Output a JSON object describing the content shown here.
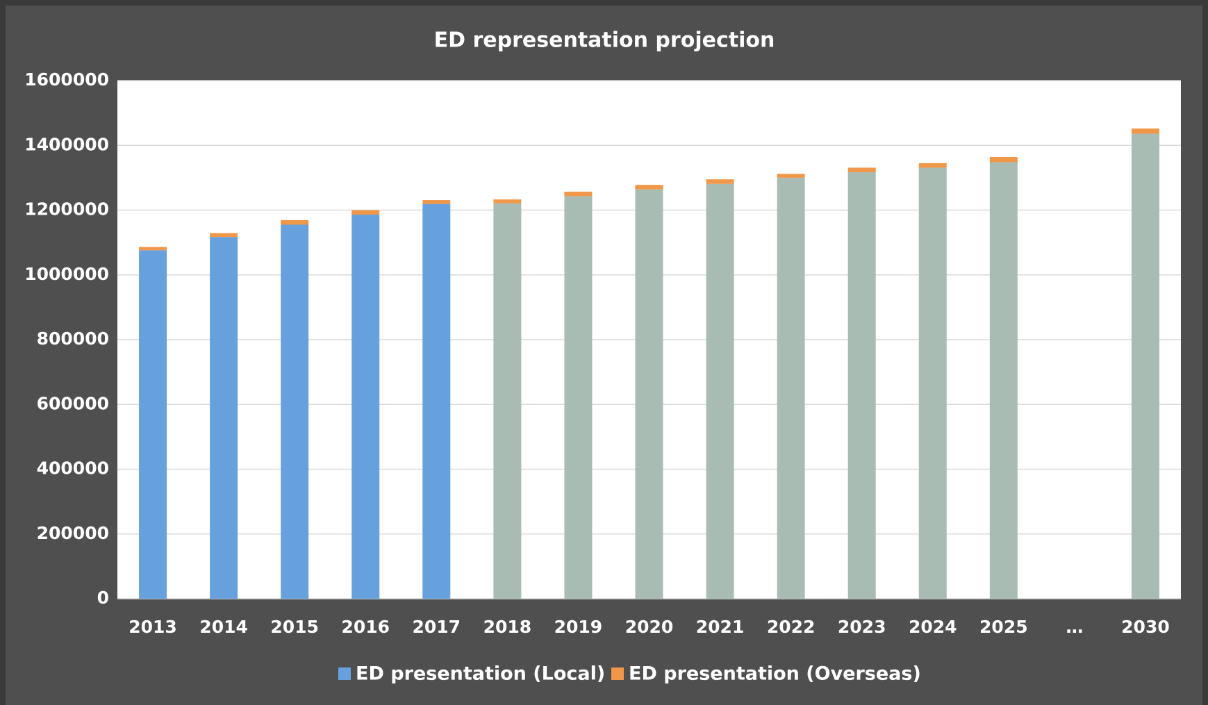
{
  "chart_data": {
    "type": "stacked_bar",
    "title": "ED representation projection",
    "categories": [
      "2013",
      "2014",
      "2015",
      "2016",
      "2017",
      "2018",
      "2019",
      "2020",
      "2021",
      "2022",
      "2023",
      "2024",
      "2025",
      "…",
      "2030"
    ],
    "series": [
      {
        "name": "ED presentation (Local)",
        "color": "#67a1dd",
        "point_colors": [
          "#67a1dd",
          "#67a1dd",
          "#67a1dd",
          "#67a1dd",
          "#67a1dd",
          "#a8bcb3",
          "#a8bcb3",
          "#a8bcb3",
          "#a8bcb3",
          "#a8bcb3",
          "#a8bcb3",
          "#a8bcb3",
          "#a8bcb3",
          "#a8bcb3",
          "#a8bcb3"
        ],
        "values": [
          1076000,
          1117000,
          1155000,
          1186000,
          1219000,
          1221000,
          1243000,
          1264000,
          1281000,
          1300000,
          1317000,
          1331000,
          1348000,
          null,
          1436000
        ]
      },
      {
        "name": "ED presentation (Overseas)",
        "color": "#f0974a",
        "values": [
          10000,
          12000,
          14000,
          14000,
          12000,
          12000,
          14000,
          14000,
          14000,
          12000,
          14000,
          14000,
          16000,
          null,
          16000
        ]
      }
    ],
    "ylim": [
      0,
      1600000
    ],
    "yticks": [
      0,
      200000,
      400000,
      600000,
      800000,
      1000000,
      1200000,
      1400000,
      1600000
    ],
    "grid": true,
    "legend": "bottom"
  }
}
